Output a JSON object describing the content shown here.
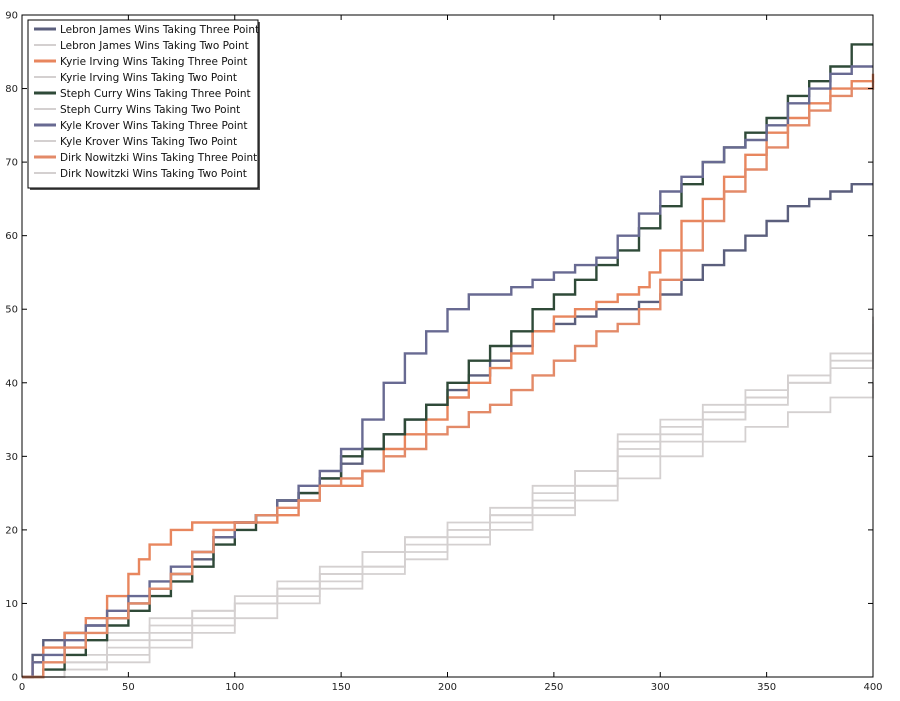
{
  "chart_data": {
    "type": "line",
    "title": "",
    "xlabel": "",
    "ylabel": "",
    "xlim": [
      0,
      400
    ],
    "ylim": [
      0,
      90
    ],
    "x_ticks": [
      0,
      50,
      100,
      150,
      200,
      250,
      300,
      350,
      400
    ],
    "y_ticks": [
      0,
      10,
      20,
      30,
      40,
      50,
      60,
      70,
      80,
      90
    ],
    "grid": false,
    "legend_position": "top-left",
    "series": [
      {
        "name": "Lebron James Wins Taking Three Point",
        "color": "#5b5f7d",
        "emphasis": "strong",
        "points": [
          [
            0,
            0
          ],
          [
            5,
            3
          ],
          [
            10,
            5
          ],
          [
            20,
            6
          ],
          [
            30,
            7
          ],
          [
            40,
            8
          ],
          [
            50,
            10
          ],
          [
            60,
            12
          ],
          [
            70,
            14
          ],
          [
            80,
            16
          ],
          [
            90,
            19
          ],
          [
            100,
            21
          ],
          [
            110,
            22
          ],
          [
            120,
            24
          ],
          [
            130,
            25
          ],
          [
            140,
            27
          ],
          [
            150,
            29
          ],
          [
            160,
            31
          ],
          [
            170,
            33
          ],
          [
            180,
            35
          ],
          [
            190,
            37
          ],
          [
            200,
            39
          ],
          [
            210,
            41
          ],
          [
            220,
            43
          ],
          [
            230,
            45
          ],
          [
            240,
            47
          ],
          [
            250,
            48
          ],
          [
            260,
            49
          ],
          [
            270,
            50
          ],
          [
            280,
            50
          ],
          [
            290,
            51
          ],
          [
            300,
            52
          ],
          [
            310,
            54
          ],
          [
            320,
            56
          ],
          [
            330,
            58
          ],
          [
            340,
            60
          ],
          [
            350,
            62
          ],
          [
            360,
            64
          ],
          [
            370,
            65
          ],
          [
            380,
            66
          ],
          [
            390,
            67
          ],
          [
            400,
            67
          ]
        ]
      },
      {
        "name": "Lebron James Wins Taking Two Point",
        "color": "#d4d0d0",
        "emphasis": "light",
        "points": [
          [
            0,
            0
          ],
          [
            20,
            2
          ],
          [
            40,
            4
          ],
          [
            60,
            6
          ],
          [
            80,
            8
          ],
          [
            100,
            10
          ],
          [
            120,
            12
          ],
          [
            140,
            14
          ],
          [
            160,
            17
          ],
          [
            180,
            19
          ],
          [
            200,
            21
          ],
          [
            220,
            23
          ],
          [
            240,
            26
          ],
          [
            260,
            28
          ],
          [
            280,
            32
          ],
          [
            300,
            34
          ],
          [
            320,
            36
          ],
          [
            340,
            38
          ],
          [
            360,
            41
          ],
          [
            380,
            44
          ],
          [
            400,
            48
          ]
        ]
      },
      {
        "name": "Kyrie Irving Wins Taking Three Point",
        "color": "#e8865e",
        "emphasis": "strong",
        "points": [
          [
            0,
            0
          ],
          [
            5,
            2
          ],
          [
            10,
            4
          ],
          [
            20,
            6
          ],
          [
            30,
            8
          ],
          [
            40,
            11
          ],
          [
            50,
            14
          ],
          [
            55,
            16
          ],
          [
            60,
            18
          ],
          [
            70,
            20
          ],
          [
            80,
            21
          ],
          [
            90,
            21
          ],
          [
            100,
            21
          ],
          [
            110,
            21
          ],
          [
            120,
            22
          ],
          [
            130,
            24
          ],
          [
            140,
            26
          ],
          [
            150,
            26
          ],
          [
            160,
            28
          ],
          [
            170,
            31
          ],
          [
            180,
            33
          ],
          [
            190,
            35
          ],
          [
            200,
            38
          ],
          [
            210,
            40
          ],
          [
            220,
            42
          ],
          [
            230,
            44
          ],
          [
            240,
            47
          ],
          [
            250,
            49
          ],
          [
            260,
            50
          ],
          [
            270,
            51
          ],
          [
            280,
            52
          ],
          [
            290,
            53
          ],
          [
            295,
            55
          ],
          [
            300,
            58
          ],
          [
            310,
            62
          ],
          [
            320,
            65
          ],
          [
            330,
            68
          ],
          [
            340,
            71
          ],
          [
            350,
            74
          ],
          [
            360,
            76
          ],
          [
            370,
            78
          ],
          [
            380,
            80
          ],
          [
            390,
            81
          ],
          [
            400,
            82
          ]
        ]
      },
      {
        "name": "Kyrie Irving Wins Taking Two Point",
        "color": "#d4d0d0",
        "emphasis": "light",
        "points": [
          [
            0,
            0
          ],
          [
            20,
            3
          ],
          [
            40,
            6
          ],
          [
            60,
            8
          ],
          [
            80,
            9
          ],
          [
            100,
            11
          ],
          [
            120,
            13
          ],
          [
            140,
            15
          ],
          [
            160,
            17
          ],
          [
            180,
            19
          ],
          [
            200,
            20
          ],
          [
            220,
            22
          ],
          [
            240,
            24
          ],
          [
            260,
            26
          ],
          [
            280,
            31
          ],
          [
            300,
            33
          ],
          [
            320,
            35
          ],
          [
            340,
            37
          ],
          [
            360,
            40
          ],
          [
            380,
            44
          ],
          [
            400,
            49
          ]
        ]
      },
      {
        "name": "Steph Curry Wins Taking Three Point",
        "color": "#2f4a38",
        "emphasis": "strong",
        "points": [
          [
            0,
            0
          ],
          [
            10,
            1
          ],
          [
            20,
            3
          ],
          [
            30,
            5
          ],
          [
            40,
            7
          ],
          [
            50,
            9
          ],
          [
            60,
            11
          ],
          [
            70,
            13
          ],
          [
            80,
            15
          ],
          [
            90,
            18
          ],
          [
            100,
            20
          ],
          [
            110,
            22
          ],
          [
            120,
            24
          ],
          [
            130,
            25
          ],
          [
            140,
            27
          ],
          [
            150,
            30
          ],
          [
            160,
            31
          ],
          [
            170,
            33
          ],
          [
            180,
            35
          ],
          [
            190,
            37
          ],
          [
            200,
            40
          ],
          [
            210,
            43
          ],
          [
            220,
            45
          ],
          [
            230,
            47
          ],
          [
            240,
            50
          ],
          [
            250,
            52
          ],
          [
            260,
            54
          ],
          [
            270,
            56
          ],
          [
            280,
            58
          ],
          [
            290,
            61
          ],
          [
            300,
            64
          ],
          [
            310,
            67
          ],
          [
            320,
            70
          ],
          [
            330,
            72
          ],
          [
            340,
            74
          ],
          [
            350,
            76
          ],
          [
            360,
            79
          ],
          [
            370,
            81
          ],
          [
            380,
            83
          ],
          [
            390,
            86
          ],
          [
            400,
            86
          ]
        ]
      },
      {
        "name": "Steph Curry Wins Taking Two Point",
        "color": "#d4d0d0",
        "emphasis": "light",
        "points": [
          [
            0,
            0
          ],
          [
            20,
            2
          ],
          [
            40,
            5
          ],
          [
            60,
            7
          ],
          [
            80,
            9
          ],
          [
            100,
            10
          ],
          [
            120,
            11
          ],
          [
            140,
            13
          ],
          [
            160,
            15
          ],
          [
            180,
            17
          ],
          [
            200,
            19
          ],
          [
            220,
            21
          ],
          [
            240,
            23
          ],
          [
            260,
            26
          ],
          [
            280,
            30
          ],
          [
            300,
            32
          ],
          [
            320,
            35
          ],
          [
            340,
            38
          ],
          [
            360,
            40
          ],
          [
            380,
            42
          ],
          [
            400,
            45
          ]
        ]
      },
      {
        "name": "Kyle Krover Wins Taking Three Point",
        "color": "#686a92",
        "emphasis": "strong",
        "points": [
          [
            0,
            0
          ],
          [
            5,
            2
          ],
          [
            10,
            3
          ],
          [
            20,
            5
          ],
          [
            30,
            7
          ],
          [
            40,
            9
          ],
          [
            50,
            11
          ],
          [
            60,
            13
          ],
          [
            70,
            15
          ],
          [
            80,
            17
          ],
          [
            90,
            19
          ],
          [
            100,
            21
          ],
          [
            110,
            22
          ],
          [
            120,
            24
          ],
          [
            130,
            26
          ],
          [
            140,
            28
          ],
          [
            150,
            31
          ],
          [
            160,
            35
          ],
          [
            170,
            40
          ],
          [
            180,
            44
          ],
          [
            190,
            47
          ],
          [
            200,
            50
          ],
          [
            210,
            52
          ],
          [
            220,
            52
          ],
          [
            230,
            53
          ],
          [
            240,
            54
          ],
          [
            250,
            55
          ],
          [
            260,
            56
          ],
          [
            270,
            57
          ],
          [
            280,
            60
          ],
          [
            290,
            63
          ],
          [
            300,
            66
          ],
          [
            310,
            68
          ],
          [
            320,
            70
          ],
          [
            330,
            72
          ],
          [
            340,
            73
          ],
          [
            350,
            75
          ],
          [
            360,
            78
          ],
          [
            370,
            80
          ],
          [
            380,
            82
          ],
          [
            390,
            83
          ],
          [
            400,
            83
          ]
        ]
      },
      {
        "name": "Kyle Krover Wins Taking Two Point",
        "color": "#d4d0d0",
        "emphasis": "light",
        "points": [
          [
            0,
            0
          ],
          [
            20,
            1
          ],
          [
            40,
            3
          ],
          [
            60,
            5
          ],
          [
            80,
            7
          ],
          [
            100,
            10
          ],
          [
            120,
            12
          ],
          [
            140,
            14
          ],
          [
            160,
            15
          ],
          [
            180,
            18
          ],
          [
            200,
            20
          ],
          [
            220,
            22
          ],
          [
            240,
            25
          ],
          [
            260,
            28
          ],
          [
            280,
            33
          ],
          [
            300,
            35
          ],
          [
            320,
            37
          ],
          [
            340,
            39
          ],
          [
            360,
            41
          ],
          [
            380,
            43
          ],
          [
            400,
            45
          ]
        ]
      },
      {
        "name": "Dirk Nowitzki Wins Taking Three Point",
        "color": "#e38a68",
        "emphasis": "strong",
        "points": [
          [
            0,
            0
          ],
          [
            10,
            2
          ],
          [
            20,
            4
          ],
          [
            30,
            6
          ],
          [
            40,
            8
          ],
          [
            50,
            10
          ],
          [
            60,
            12
          ],
          [
            70,
            14
          ],
          [
            80,
            17
          ],
          [
            90,
            20
          ],
          [
            100,
            21
          ],
          [
            110,
            22
          ],
          [
            120,
            23
          ],
          [
            130,
            24
          ],
          [
            140,
            26
          ],
          [
            150,
            27
          ],
          [
            160,
            28
          ],
          [
            170,
            30
          ],
          [
            180,
            31
          ],
          [
            190,
            33
          ],
          [
            200,
            34
          ],
          [
            210,
            36
          ],
          [
            220,
            37
          ],
          [
            230,
            39
          ],
          [
            240,
            41
          ],
          [
            250,
            43
          ],
          [
            260,
            45
          ],
          [
            270,
            47
          ],
          [
            280,
            48
          ],
          [
            290,
            50
          ],
          [
            300,
            54
          ],
          [
            310,
            58
          ],
          [
            320,
            62
          ],
          [
            330,
            66
          ],
          [
            340,
            69
          ],
          [
            350,
            72
          ],
          [
            360,
            75
          ],
          [
            370,
            77
          ],
          [
            380,
            79
          ],
          [
            390,
            80
          ],
          [
            400,
            81
          ]
        ]
      },
      {
        "name": "Dirk Nowitzki Wins Taking Two Point",
        "color": "#d4d0d0",
        "emphasis": "light",
        "points": [
          [
            0,
            0
          ],
          [
            20,
            1
          ],
          [
            40,
            2
          ],
          [
            60,
            4
          ],
          [
            80,
            6
          ],
          [
            100,
            8
          ],
          [
            120,
            10
          ],
          [
            140,
            12
          ],
          [
            160,
            14
          ],
          [
            180,
            16
          ],
          [
            200,
            18
          ],
          [
            220,
            20
          ],
          [
            240,
            22
          ],
          [
            260,
            24
          ],
          [
            280,
            27
          ],
          [
            300,
            30
          ],
          [
            320,
            32
          ],
          [
            340,
            34
          ],
          [
            360,
            36
          ],
          [
            380,
            38
          ],
          [
            400,
            40
          ]
        ]
      }
    ]
  }
}
